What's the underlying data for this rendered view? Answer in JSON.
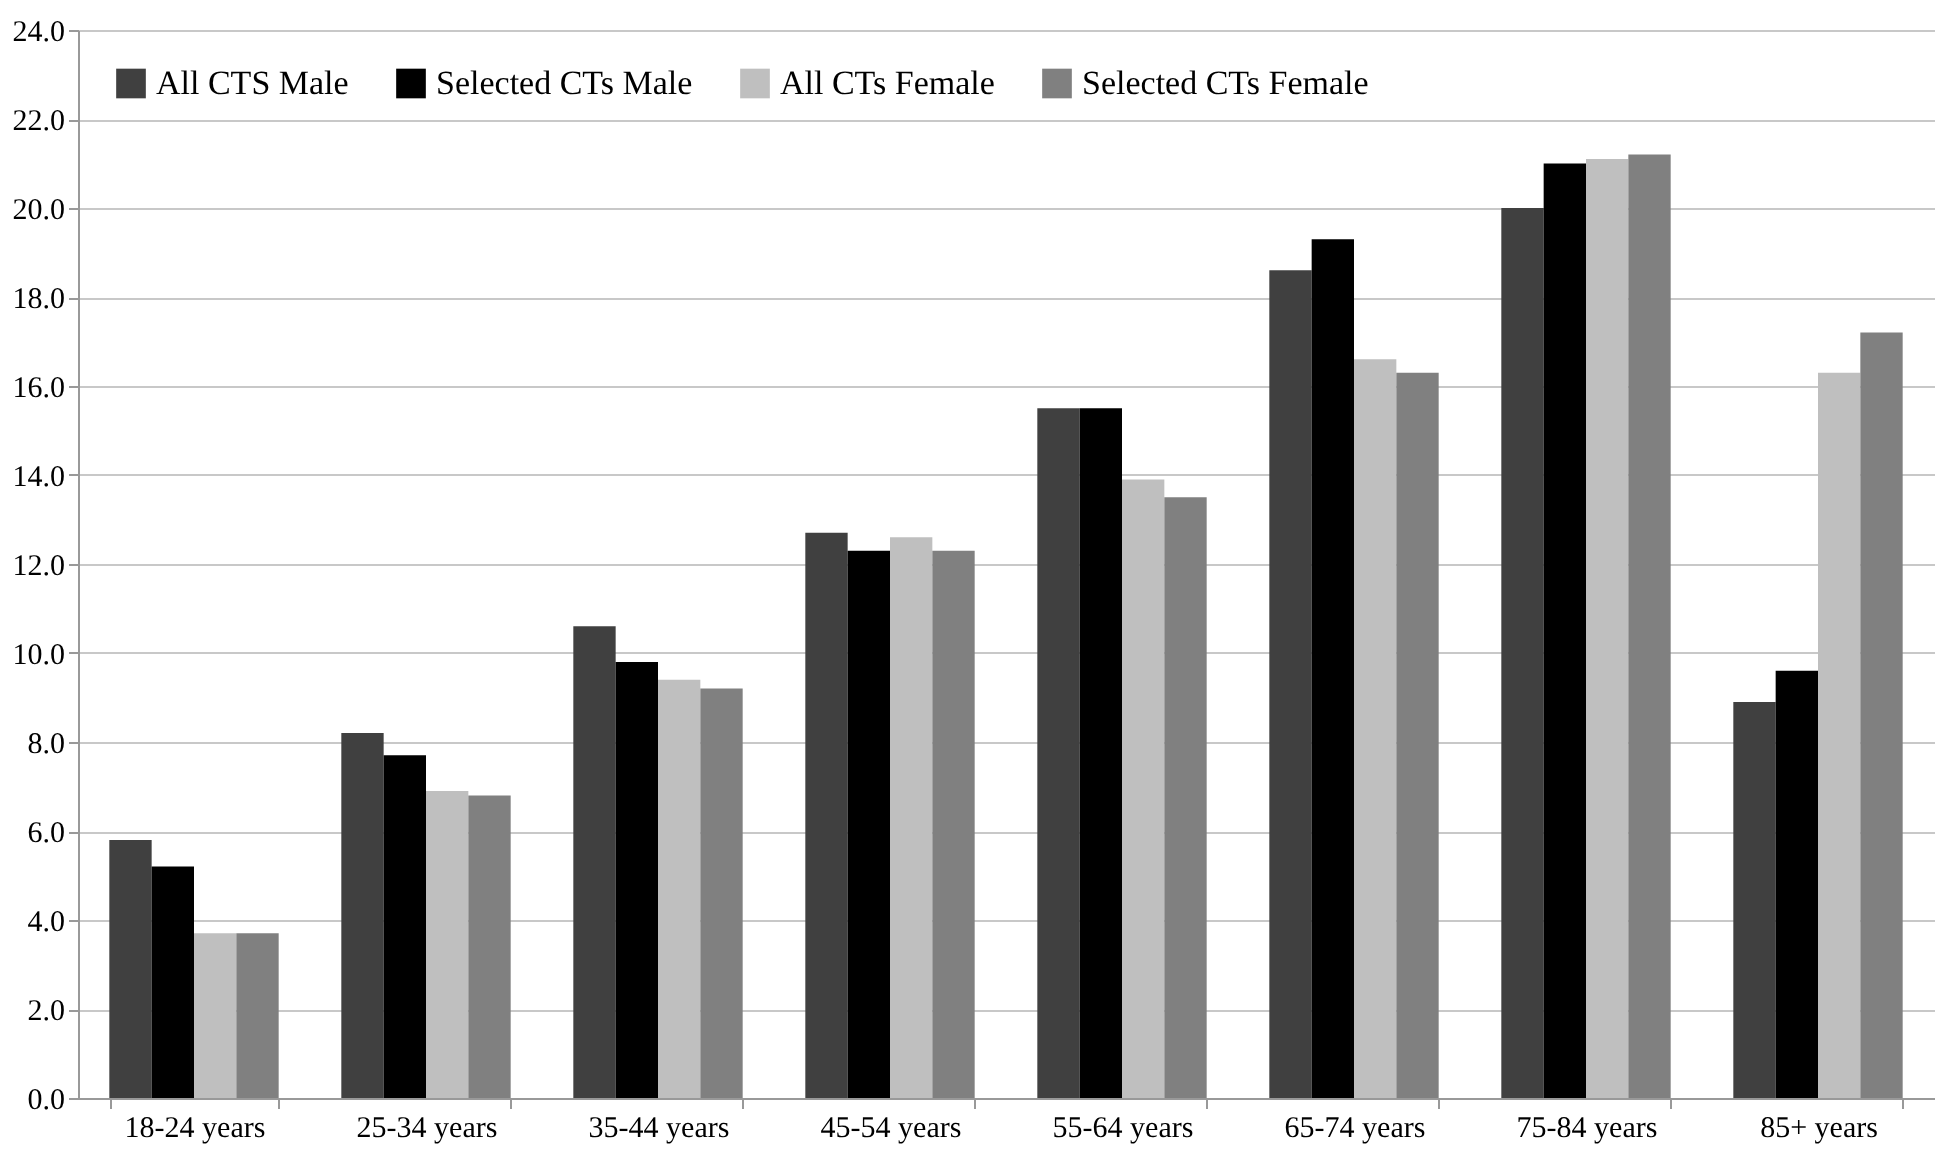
{
  "chart_data": {
    "type": "bar",
    "categories": [
      "18-24 years",
      "25-34 years",
      "35-44 years",
      "45-54 years",
      "55-64 years",
      "65-74 years",
      "75-84 years",
      "85+ years"
    ],
    "series": [
      {
        "name": "All CTS Male",
        "color": "#404040",
        "values": [
          5.8,
          8.2,
          10.6,
          12.7,
          15.5,
          18.6,
          20.0,
          8.9
        ]
      },
      {
        "name": "Selected CTs Male",
        "color": "#000000",
        "values": [
          5.2,
          7.7,
          9.8,
          12.3,
          15.5,
          19.3,
          21.0,
          9.6
        ]
      },
      {
        "name": "All CTs Female",
        "color": "#bfbfbf",
        "values": [
          3.7,
          6.9,
          9.4,
          12.6,
          13.9,
          16.6,
          21.1,
          16.3
        ]
      },
      {
        "name": "Selected CTs Female",
        "color": "#808080",
        "values": [
          3.7,
          6.8,
          9.2,
          12.3,
          13.5,
          16.3,
          21.2,
          17.2
        ]
      }
    ],
    "ylim": [
      0,
      24
    ],
    "yticks": [
      {
        "value": 0,
        "label": "0.0"
      },
      {
        "value": 2,
        "label": "2.0"
      },
      {
        "value": 4,
        "label": "4.0"
      },
      {
        "value": 6,
        "label": "6.0"
      },
      {
        "value": 8,
        "label": "8.0"
      },
      {
        "value": 10,
        "label": "10.0"
      },
      {
        "value": 12,
        "label": "12.0"
      },
      {
        "value": 14,
        "label": "14.0"
      },
      {
        "value": 16,
        "label": "16.0"
      },
      {
        "value": 18,
        "label": "18.0"
      },
      {
        "value": 20,
        "label": "20.0"
      },
      {
        "value": 22,
        "label": "22.0"
      },
      {
        "value": 24,
        "label": "24.0"
      }
    ],
    "grid": "y",
    "legend": "top left"
  }
}
